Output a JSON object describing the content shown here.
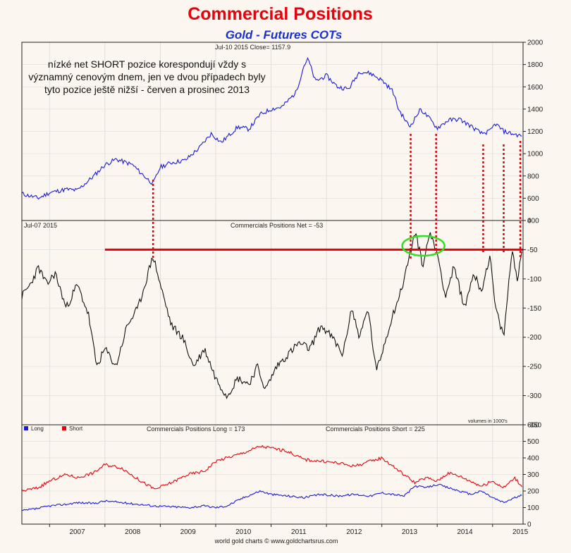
{
  "title": "Commercial Positions",
  "subtitle": "Gold - Futures COTs",
  "annotation": "nízké net SHORT pozice korespondují vždy s významný cenovým dnem, jen ve dvou případech byly tyto pozice ještě nižší - červen a prosinec 2013",
  "footer": "world gold charts © www.goldchartsrus.com",
  "chart_data": [
    {
      "type": "line",
      "header": "Jul-10  2015   Close= 1157.9",
      "ylim": [
        400,
        2000
      ],
      "yticks": [
        400,
        600,
        800,
        1000,
        1200,
        1400,
        1600,
        1800,
        2000
      ],
      "series": [
        {
          "color": "#1a1adb",
          "x": [
            2006.5,
            2006.8,
            2007.0,
            2007.3,
            2007.5,
            2007.8,
            2008.0,
            2008.2,
            2008.5,
            2008.6,
            2008.75,
            2008.87,
            2009.0,
            2009.2,
            2009.45,
            2009.7,
            2009.92,
            2010.1,
            2010.4,
            2010.6,
            2010.8,
            2011.0,
            2011.2,
            2011.45,
            2011.6,
            2011.67,
            2011.8,
            2012.0,
            2012.2,
            2012.4,
            2012.6,
            2012.8,
            2013.0,
            2013.2,
            2013.3,
            2013.5,
            2013.7,
            2013.85,
            2014.0,
            2014.2,
            2014.4,
            2014.6,
            2014.8,
            2014.95,
            2015.05,
            2015.2,
            2015.35,
            2015.53
          ],
          "values": [
            640,
            600,
            650,
            680,
            670,
            800,
            900,
            950,
            900,
            850,
            780,
            730,
            880,
            920,
            940,
            1050,
            1180,
            1100,
            1240,
            1220,
            1350,
            1400,
            1420,
            1550,
            1800,
            1850,
            1650,
            1700,
            1600,
            1580,
            1740,
            1720,
            1660,
            1560,
            1400,
            1240,
            1400,
            1320,
            1230,
            1300,
            1310,
            1250,
            1180,
            1200,
            1270,
            1200,
            1180,
            1158
          ]
        }
      ]
    },
    {
      "type": "line",
      "header": "Jul-07  2015",
      "title": "Commercials Positions Net = -53",
      "note": "volumes in 1000's",
      "ylim": [
        -350,
        0
      ],
      "yticks": [
        0,
        -50,
        -100,
        -150,
        -200,
        -250,
        -300,
        -350
      ],
      "threshold": -50,
      "series": [
        {
          "color": "#111111",
          "x": [
            2006.5,
            2006.65,
            2006.8,
            2006.95,
            2007.1,
            2007.3,
            2007.5,
            2007.7,
            2007.85,
            2008.0,
            2008.2,
            2008.4,
            2008.6,
            2008.87,
            2009.0,
            2009.2,
            2009.4,
            2009.6,
            2009.8,
            2010.0,
            2010.2,
            2010.4,
            2010.6,
            2010.75,
            2010.9,
            2011.1,
            2011.3,
            2011.5,
            2011.7,
            2011.9,
            2012.1,
            2012.3,
            2012.45,
            2012.6,
            2012.75,
            2012.9,
            2013.05,
            2013.2,
            2013.35,
            2013.5,
            2013.6,
            2013.75,
            2013.85,
            2014.0,
            2014.15,
            2014.3,
            2014.5,
            2014.65,
            2014.8,
            2014.95,
            2015.05,
            2015.2,
            2015.35,
            2015.45,
            2015.53
          ],
          "values": [
            -130,
            -110,
            -80,
            -110,
            -90,
            -150,
            -110,
            -160,
            -250,
            -220,
            -250,
            -180,
            -150,
            -60,
            -110,
            -180,
            -200,
            -250,
            -220,
            -270,
            -300,
            -270,
            -280,
            -250,
            -290,
            -250,
            -230,
            -210,
            -220,
            -180,
            -200,
            -230,
            -150,
            -200,
            -150,
            -260,
            -210,
            -160,
            -120,
            -60,
            -20,
            -80,
            -20,
            -55,
            -130,
            -80,
            -150,
            -90,
            -120,
            -60,
            -150,
            -200,
            -50,
            -100,
            -53
          ]
        }
      ]
    },
    {
      "type": "line",
      "title": "Commercials Positions Long = 173",
      "title2": "Commercials Positions Short = 225",
      "ylim": [
        0,
        600
      ],
      "yticks": [
        0,
        100,
        200,
        300,
        400,
        500,
        600
      ],
      "xticks": [
        "2007",
        "2008",
        "2009",
        "2010",
        "2011",
        "2012",
        "2013",
        "2014",
        "2015"
      ],
      "series": [
        {
          "name": "Long",
          "color": "#1a1adb",
          "x": [
            2006.5,
            2006.8,
            2007.0,
            2007.3,
            2007.5,
            2007.8,
            2008.0,
            2008.3,
            2008.6,
            2008.9,
            2009.2,
            2009.5,
            2009.8,
            2010.0,
            2010.2,
            2010.5,
            2010.8,
            2011.0,
            2011.3,
            2011.6,
            2011.9,
            2012.2,
            2012.5,
            2012.8,
            2013.0,
            2013.2,
            2013.4,
            2013.6,
            2013.8,
            2014.0,
            2014.2,
            2014.4,
            2014.6,
            2014.8,
            2015.0,
            2015.2,
            2015.4,
            2015.53
          ],
          "values": [
            80,
            95,
            110,
            120,
            130,
            125,
            140,
            130,
            120,
            110,
            105,
            100,
            110,
            100,
            110,
            160,
            200,
            180,
            170,
            160,
            180,
            170,
            180,
            170,
            190,
            180,
            170,
            230,
            220,
            240,
            220,
            200,
            180,
            200,
            160,
            130,
            160,
            173
          ]
        },
        {
          "name": "Short",
          "color": "#e8000a",
          "x": [
            2006.5,
            2006.8,
            2007.0,
            2007.3,
            2007.5,
            2007.8,
            2008.0,
            2008.3,
            2008.6,
            2008.9,
            2009.2,
            2009.5,
            2009.8,
            2010.0,
            2010.2,
            2010.5,
            2010.8,
            2011.0,
            2011.3,
            2011.6,
            2011.9,
            2012.2,
            2012.5,
            2012.8,
            2013.0,
            2013.2,
            2013.4,
            2013.6,
            2013.8,
            2014.0,
            2014.2,
            2014.4,
            2014.6,
            2014.8,
            2015.0,
            2015.2,
            2015.4,
            2015.53
          ],
          "values": [
            200,
            220,
            260,
            300,
            280,
            310,
            360,
            340,
            270,
            210,
            250,
            300,
            320,
            380,
            400,
            430,
            470,
            460,
            440,
            390,
            380,
            370,
            350,
            380,
            400,
            350,
            300,
            250,
            280,
            260,
            310,
            290,
            260,
            230,
            260,
            220,
            280,
            225
          ]
        }
      ]
    }
  ]
}
